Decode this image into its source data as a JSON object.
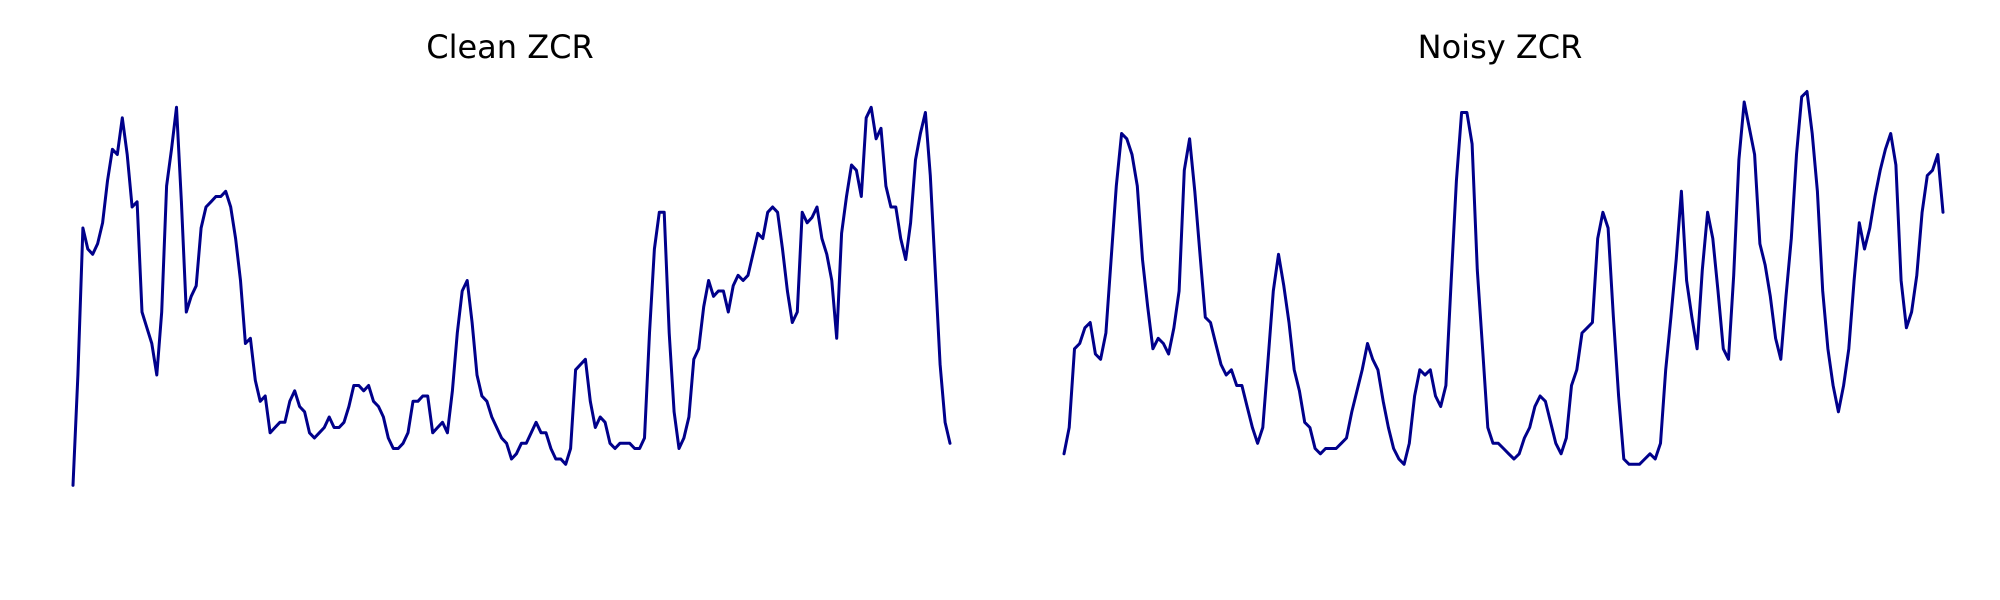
{
  "chart_data": [
    {
      "type": "line",
      "title": "Clean ZCR",
      "xlabel": "",
      "ylabel": "",
      "grid": false,
      "axes_visible": false,
      "color": "#00008b",
      "ylim": [
        0,
        1
      ],
      "series": [
        {
          "values": [
            0.19,
            0.4,
            0.68,
            0.64,
            0.63,
            0.65,
            0.69,
            0.77,
            0.83,
            0.82,
            0.89,
            0.82,
            0.72,
            0.73,
            0.52,
            0.49,
            0.46,
            0.4,
            0.52,
            0.76,
            0.83,
            0.91,
            0.73,
            0.52,
            0.55,
            0.57,
            0.68,
            0.72,
            0.73,
            0.74,
            0.74,
            0.75,
            0.72,
            0.66,
            0.58,
            0.46,
            0.47,
            0.39,
            0.35,
            0.36,
            0.29,
            0.3,
            0.31,
            0.31,
            0.35,
            0.37,
            0.34,
            0.33,
            0.29,
            0.28,
            0.29,
            0.3,
            0.32,
            0.3,
            0.3,
            0.31,
            0.34,
            0.38,
            0.38,
            0.37,
            0.38,
            0.35,
            0.34,
            0.32,
            0.28,
            0.26,
            0.26,
            0.27,
            0.29,
            0.35,
            0.35,
            0.36,
            0.36,
            0.29,
            0.3,
            0.31,
            0.29,
            0.37,
            0.48,
            0.56,
            0.58,
            0.5,
            0.4,
            0.36,
            0.35,
            0.32,
            0.3,
            0.28,
            0.27,
            0.24,
            0.25,
            0.27,
            0.27,
            0.29,
            0.31,
            0.29,
            0.29,
            0.26,
            0.24,
            0.24,
            0.23,
            0.26,
            0.41,
            0.42,
            0.43,
            0.35,
            0.3,
            0.32,
            0.31,
            0.27,
            0.26,
            0.27,
            0.27,
            0.27,
            0.26,
            0.26,
            0.28,
            0.48,
            0.64,
            0.71,
            0.71,
            0.48,
            0.33,
            0.26,
            0.28,
            0.32,
            0.43,
            0.45,
            0.53,
            0.58,
            0.55,
            0.56,
            0.56,
            0.52,
            0.57,
            0.59,
            0.58,
            0.59,
            0.63,
            0.67,
            0.66,
            0.71,
            0.72,
            0.71,
            0.64,
            0.56,
            0.5,
            0.52,
            0.71,
            0.69,
            0.7,
            0.72,
            0.66,
            0.63,
            0.58,
            0.47,
            0.67,
            0.74,
            0.8,
            0.79,
            0.74,
            0.89,
            0.91,
            0.85,
            0.87,
            0.76,
            0.72,
            0.72,
            0.66,
            0.62,
            0.69,
            0.81,
            0.86,
            0.9,
            0.78,
            0.6,
            0.42,
            0.31,
            0.27
          ]
        }
      ]
    },
    {
      "type": "line",
      "title": "Noisy ZCR",
      "xlabel": "",
      "ylabel": "",
      "grid": false,
      "axes_visible": false,
      "color": "#00008b",
      "ylim": [
        0,
        1
      ],
      "series": [
        {
          "values": [
            0.25,
            0.3,
            0.45,
            0.46,
            0.49,
            0.5,
            0.44,
            0.43,
            0.48,
            0.62,
            0.76,
            0.86,
            0.85,
            0.82,
            0.76,
            0.62,
            0.53,
            0.45,
            0.47,
            0.46,
            0.44,
            0.49,
            0.56,
            0.79,
            0.85,
            0.75,
            0.63,
            0.51,
            0.5,
            0.46,
            0.42,
            0.4,
            0.41,
            0.38,
            0.38,
            0.34,
            0.3,
            0.27,
            0.3,
            0.43,
            0.56,
            0.63,
            0.57,
            0.5,
            0.41,
            0.37,
            0.31,
            0.3,
            0.26,
            0.25,
            0.26,
            0.26,
            0.26,
            0.27,
            0.28,
            0.33,
            0.37,
            0.41,
            0.46,
            0.43,
            0.41,
            0.35,
            0.3,
            0.26,
            0.24,
            0.23,
            0.27,
            0.36,
            0.41,
            0.4,
            0.41,
            0.36,
            0.34,
            0.38,
            0.58,
            0.77,
            0.9,
            0.9,
            0.84,
            0.6,
            0.45,
            0.3,
            0.27,
            0.27,
            0.26,
            0.25,
            0.24,
            0.25,
            0.28,
            0.3,
            0.34,
            0.36,
            0.35,
            0.31,
            0.27,
            0.25,
            0.28,
            0.38,
            0.41,
            0.48,
            0.49,
            0.5,
            0.66,
            0.71,
            0.68,
            0.51,
            0.36,
            0.24,
            0.23,
            0.23,
            0.23,
            0.24,
            0.25,
            0.24,
            0.27,
            0.41,
            0.51,
            0.62,
            0.75,
            0.58,
            0.51,
            0.45,
            0.6,
            0.71,
            0.66,
            0.56,
            0.45,
            0.43,
            0.59,
            0.81,
            0.92,
            0.87,
            0.82,
            0.65,
            0.61,
            0.55,
            0.47,
            0.43,
            0.55,
            0.66,
            0.82,
            0.93,
            0.94,
            0.86,
            0.75,
            0.56,
            0.45,
            0.38,
            0.33,
            0.38,
            0.45,
            0.58,
            0.69,
            0.64,
            0.68,
            0.74,
            0.79,
            0.83,
            0.86,
            0.8,
            0.58,
            0.49,
            0.52,
            0.59,
            0.71,
            0.78,
            0.79,
            0.82,
            0.71
          ]
        }
      ]
    }
  ]
}
